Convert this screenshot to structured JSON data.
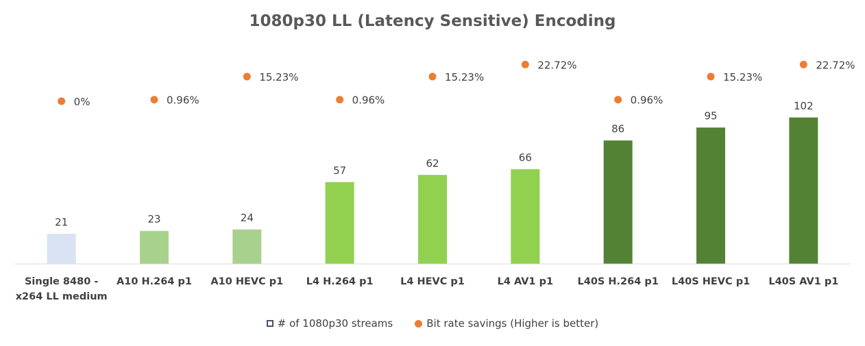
{
  "chart_data": {
    "type": "bar",
    "title": "1080p30 LL (Latency Sensitive) Encoding",
    "categories": [
      "Single 8480 - x264 LL medium",
      "A10 H.264 p1",
      "A10 HEVC p1",
      "L4 H.264 p1",
      "L4 HEVC p1",
      "L4 AV1 p1",
      "L40S H.264 p1",
      "L40S HEVC p1",
      "L40S AV1 p1"
    ],
    "tick_lines": [
      [
        "Single 8480 -",
        "x264 LL medium"
      ],
      [
        "A10 H.264 p1"
      ],
      [
        "A10 HEVC p1"
      ],
      [
        "L4 H.264 p1"
      ],
      [
        "L4 HEVC p1"
      ],
      [
        "L4 AV1 p1"
      ],
      [
        "L40S H.264 p1"
      ],
      [
        "L40S HEVC p1"
      ],
      [
        "L40S AV1 p1"
      ]
    ],
    "series": [
      {
        "name": "# of 1080p30 streams",
        "kind": "bar",
        "values": [
          21,
          23,
          24,
          57,
          62,
          66,
          86,
          95,
          102
        ],
        "value_labels": [
          "21",
          "23",
          "24",
          "57",
          "62",
          "66",
          "86",
          "95",
          "102"
        ],
        "colors": [
          "#dae3f3",
          "#a9d18e",
          "#a9d18e",
          "#92d050",
          "#92d050",
          "#92d050",
          "#548235",
          "#548235",
          "#548235"
        ]
      },
      {
        "name": "Bit rate savings (Higher is better)",
        "kind": "scatter",
        "values": [
          0,
          0.96,
          15.23,
          0.96,
          15.23,
          22.72,
          0.96,
          15.23,
          22.72
        ],
        "value_labels": [
          "0%",
          "0.96%",
          "15.23%",
          "0.96%",
          "15.23%",
          "22.72%",
          "0.96%",
          "15.23%",
          "22.72%"
        ],
        "color": "#ed7d31"
      }
    ],
    "legend_position": "bottom",
    "grid": false
  },
  "legend": {
    "bar_label": "# of 1080p30 streams",
    "dot_label": "Bit rate savings (Higher is better)",
    "bar_swatch_color": "#44546a",
    "dot_color": "#ed7d31"
  },
  "axis_color": "#d9d9d9"
}
